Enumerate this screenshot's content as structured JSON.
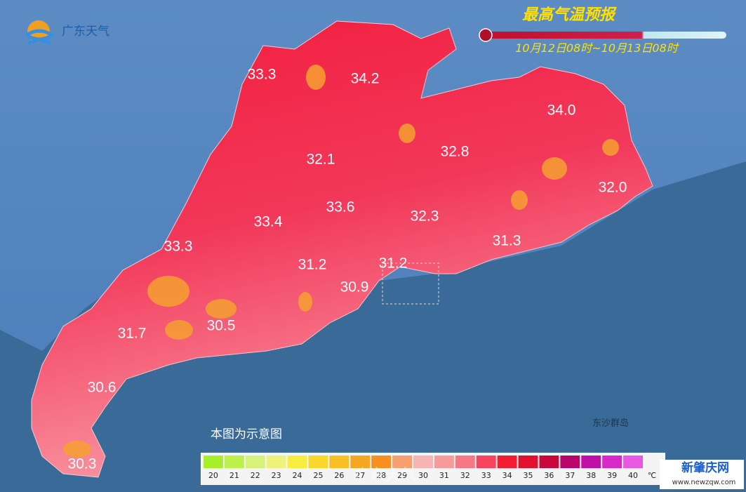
{
  "header": {
    "logo": "广东天气",
    "title": "最高气温预报",
    "period": "10月12日08时~10月13日08时"
  },
  "map": {
    "labels": [
      "33.3",
      "34.2",
      "34.0",
      "32.1",
      "32.8",
      "32.0",
      "33.6",
      "33.4",
      "32.3",
      "33.3",
      "31.3",
      "31.2",
      "31.2",
      "30.9",
      "31.7",
      "30.5",
      "30.6",
      "30.3"
    ],
    "islands_label": "东沙群岛",
    "note": "本图为示意图"
  },
  "legend": {
    "items": [
      {
        "label": "20",
        "color": "#a6ef2a"
      },
      {
        "label": "21",
        "color": "#bdf04a"
      },
      {
        "label": "22",
        "color": "#d6f27a"
      },
      {
        "label": "23",
        "color": "#eef27a"
      },
      {
        "label": "24",
        "color": "#f7ec40"
      },
      {
        "label": "25",
        "color": "#f8d82a"
      },
      {
        "label": "26",
        "color": "#f8c024"
      },
      {
        "label": "27",
        "color": "#f7a624"
      },
      {
        "label": "28",
        "color": "#f79020"
      },
      {
        "label": "29",
        "color": "#f6a070"
      },
      {
        "label": "30",
        "color": "#f7b4b4"
      },
      {
        "label": "31",
        "color": "#f79a9a"
      },
      {
        "label": "32",
        "color": "#f77884"
      },
      {
        "label": "33",
        "color": "#f7445e"
      },
      {
        "label": "34",
        "color": "#f41c30"
      },
      {
        "label": "35",
        "color": "#e0102e"
      },
      {
        "label": "36",
        "color": "#c8083c"
      },
      {
        "label": "37",
        "color": "#b8066a"
      },
      {
        "label": "38",
        "color": "#c010a8"
      },
      {
        "label": "39",
        "color": "#d828c8"
      },
      {
        "label": "40",
        "color": "#e858e0"
      }
    ],
    "unit": "℃"
  },
  "watermarks": {
    "weibo": "广东天气",
    "site": "新肇庆网",
    "url": "www.newzqw.com"
  }
}
